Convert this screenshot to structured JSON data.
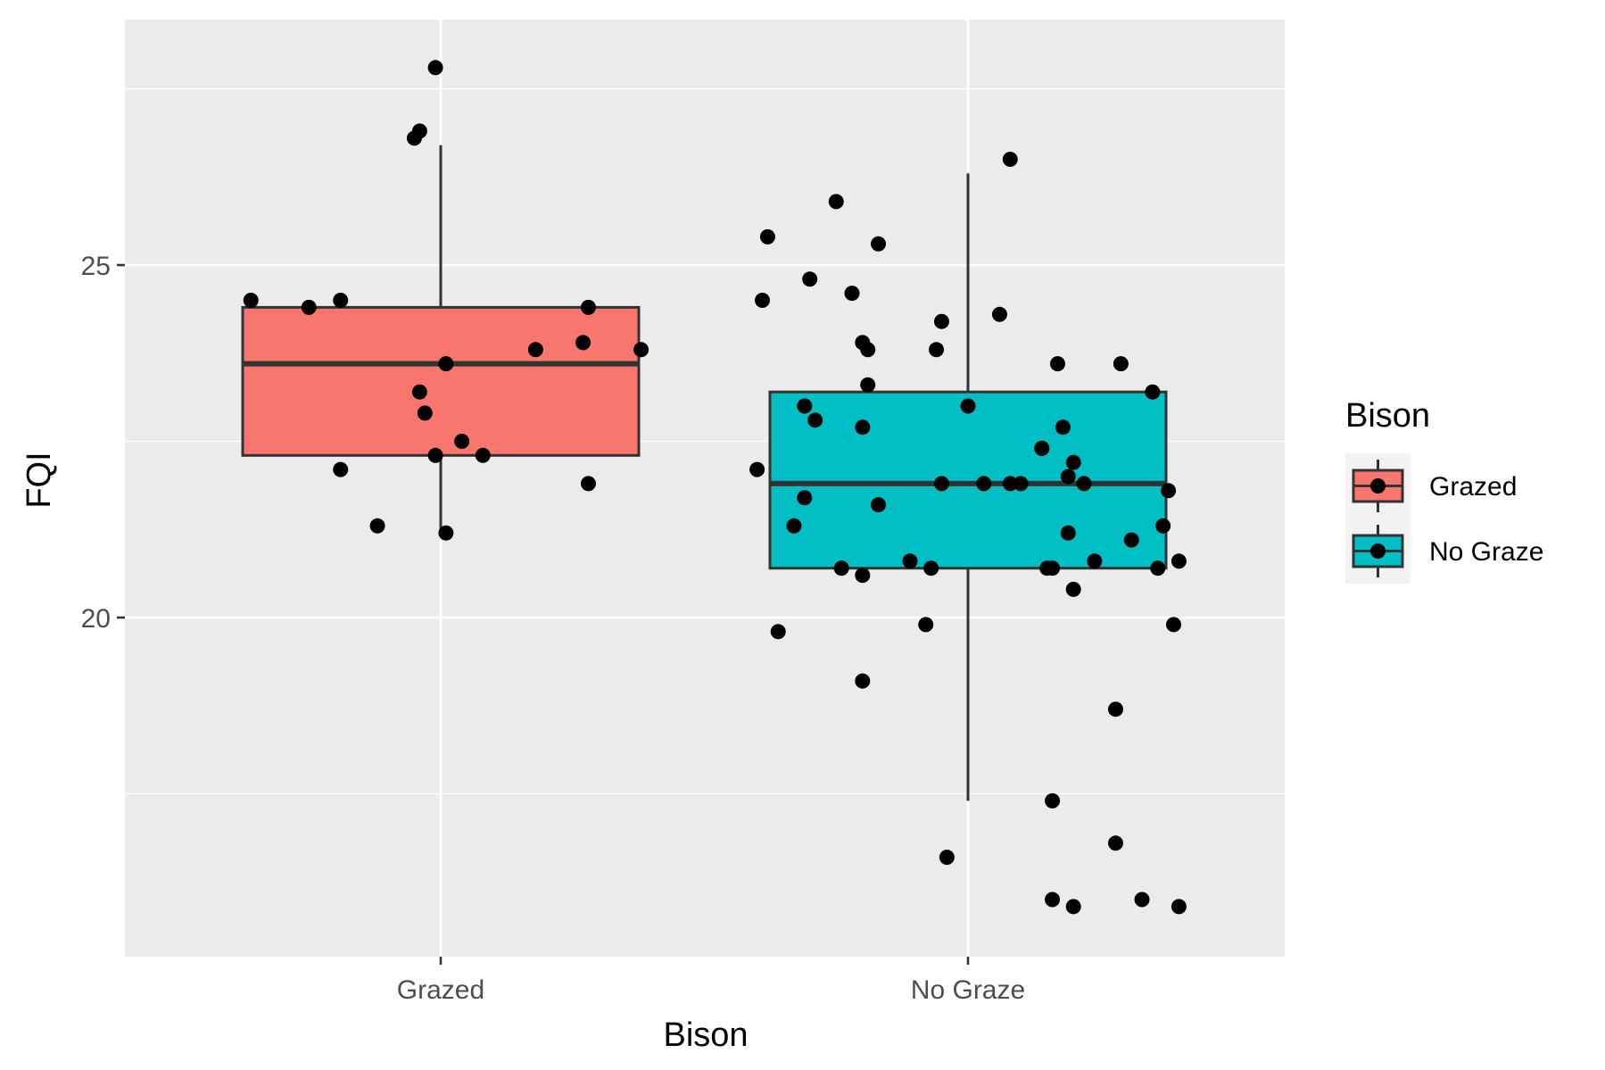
{
  "chart_data": {
    "type": "box",
    "xlabel": "Bison",
    "ylabel": "FQI",
    "categories": [
      "Grazed",
      "No Graze"
    ],
    "y_ticks": [
      20,
      25
    ],
    "ylim": [
      15.3,
      28.0
    ],
    "grid": true,
    "panel_background": "#ebebeb",
    "legend": {
      "title": "Bison",
      "position": "right",
      "entries": [
        {
          "label": "Grazed",
          "color": "#f8766d"
        },
        {
          "label": "No Graze",
          "color": "#00bfc4"
        }
      ]
    },
    "boxes": [
      {
        "category": "Grazed",
        "color": "#f8766d",
        "whisker_low": 21.2,
        "q1": 22.3,
        "median": 23.6,
        "q3": 24.4,
        "whisker_high": 26.7
      },
      {
        "category": "No Graze",
        "color": "#00bfc4",
        "whisker_low": 17.4,
        "q1": 20.7,
        "median": 21.9,
        "q3": 23.2,
        "whisker_high": 26.3
      }
    ],
    "points": [
      {
        "category": "Grazed",
        "jitter": -0.36,
        "y": 24.5
      },
      {
        "category": "Grazed",
        "jitter": -0.25,
        "y": 24.4
      },
      {
        "category": "Grazed",
        "jitter": -0.19,
        "y": 24.5
      },
      {
        "category": "Grazed",
        "jitter": -0.19,
        "y": 22.1
      },
      {
        "category": "Grazed",
        "jitter": -0.12,
        "y": 21.3
      },
      {
        "category": "Grazed",
        "jitter": -0.05,
        "y": 26.8
      },
      {
        "category": "Grazed",
        "jitter": -0.04,
        "y": 26.9
      },
      {
        "category": "Grazed",
        "jitter": -0.04,
        "y": 23.2
      },
      {
        "category": "Grazed",
        "jitter": -0.03,
        "y": 22.9
      },
      {
        "category": "Grazed",
        "jitter": -0.01,
        "y": 27.8
      },
      {
        "category": "Grazed",
        "jitter": -0.01,
        "y": 22.3
      },
      {
        "category": "Grazed",
        "jitter": 0.01,
        "y": 23.6
      },
      {
        "category": "Grazed",
        "jitter": 0.01,
        "y": 21.2
      },
      {
        "category": "Grazed",
        "jitter": 0.04,
        "y": 22.5
      },
      {
        "category": "Grazed",
        "jitter": 0.08,
        "y": 22.3
      },
      {
        "category": "Grazed",
        "jitter": 0.18,
        "y": 23.8
      },
      {
        "category": "Grazed",
        "jitter": 0.27,
        "y": 23.9
      },
      {
        "category": "Grazed",
        "jitter": 0.28,
        "y": 21.9
      },
      {
        "category": "Grazed",
        "jitter": 0.28,
        "y": 24.4
      },
      {
        "category": "Grazed",
        "jitter": 0.38,
        "y": 23.8
      },
      {
        "category": "No Graze",
        "jitter": -0.4,
        "y": 22.1
      },
      {
        "category": "No Graze",
        "jitter": -0.39,
        "y": 24.5
      },
      {
        "category": "No Graze",
        "jitter": -0.38,
        "y": 25.4
      },
      {
        "category": "No Graze",
        "jitter": -0.36,
        "y": 19.8
      },
      {
        "category": "No Graze",
        "jitter": -0.33,
        "y": 21.3
      },
      {
        "category": "No Graze",
        "jitter": -0.31,
        "y": 21.7
      },
      {
        "category": "No Graze",
        "jitter": -0.31,
        "y": 23.0
      },
      {
        "category": "No Graze",
        "jitter": -0.3,
        "y": 24.8
      },
      {
        "category": "No Graze",
        "jitter": -0.29,
        "y": 22.8
      },
      {
        "category": "No Graze",
        "jitter": -0.25,
        "y": 25.9
      },
      {
        "category": "No Graze",
        "jitter": -0.24,
        "y": 20.7
      },
      {
        "category": "No Graze",
        "jitter": -0.22,
        "y": 24.6
      },
      {
        "category": "No Graze",
        "jitter": -0.2,
        "y": 23.9
      },
      {
        "category": "No Graze",
        "jitter": -0.2,
        "y": 22.7
      },
      {
        "category": "No Graze",
        "jitter": -0.2,
        "y": 20.6
      },
      {
        "category": "No Graze",
        "jitter": -0.2,
        "y": 19.1
      },
      {
        "category": "No Graze",
        "jitter": -0.19,
        "y": 23.8
      },
      {
        "category": "No Graze",
        "jitter": -0.19,
        "y": 23.3
      },
      {
        "category": "No Graze",
        "jitter": -0.17,
        "y": 21.6
      },
      {
        "category": "No Graze",
        "jitter": -0.17,
        "y": 25.3
      },
      {
        "category": "No Graze",
        "jitter": -0.11,
        "y": 20.8
      },
      {
        "category": "No Graze",
        "jitter": -0.08,
        "y": 19.9
      },
      {
        "category": "No Graze",
        "jitter": -0.07,
        "y": 20.7
      },
      {
        "category": "No Graze",
        "jitter": -0.06,
        "y": 23.8
      },
      {
        "category": "No Graze",
        "jitter": -0.05,
        "y": 24.2
      },
      {
        "category": "No Graze",
        "jitter": -0.05,
        "y": 21.9
      },
      {
        "category": "No Graze",
        "jitter": -0.04,
        "y": 16.6
      },
      {
        "category": "No Graze",
        "jitter": 0.0,
        "y": 23.0
      },
      {
        "category": "No Graze",
        "jitter": 0.03,
        "y": 21.9
      },
      {
        "category": "No Graze",
        "jitter": 0.06,
        "y": 24.3
      },
      {
        "category": "No Graze",
        "jitter": 0.08,
        "y": 26.5
      },
      {
        "category": "No Graze",
        "jitter": 0.08,
        "y": 21.9
      },
      {
        "category": "No Graze",
        "jitter": 0.1,
        "y": 21.9
      },
      {
        "category": "No Graze",
        "jitter": 0.14,
        "y": 22.4
      },
      {
        "category": "No Graze",
        "jitter": 0.14,
        "y": 22.4
      },
      {
        "category": "No Graze",
        "jitter": 0.15,
        "y": 20.7
      },
      {
        "category": "No Graze",
        "jitter": 0.16,
        "y": 20.7
      },
      {
        "category": "No Graze",
        "jitter": 0.16,
        "y": 17.4
      },
      {
        "category": "No Graze",
        "jitter": 0.16,
        "y": 16.0
      },
      {
        "category": "No Graze",
        "jitter": 0.17,
        "y": 23.6
      },
      {
        "category": "No Graze",
        "jitter": 0.18,
        "y": 22.7
      },
      {
        "category": "No Graze",
        "jitter": 0.19,
        "y": 21.2
      },
      {
        "category": "No Graze",
        "jitter": 0.19,
        "y": 22.0
      },
      {
        "category": "No Graze",
        "jitter": 0.2,
        "y": 22.2
      },
      {
        "category": "No Graze",
        "jitter": 0.2,
        "y": 20.4
      },
      {
        "category": "No Graze",
        "jitter": 0.2,
        "y": 15.9
      },
      {
        "category": "No Graze",
        "jitter": 0.22,
        "y": 21.9
      },
      {
        "category": "No Graze",
        "jitter": 0.24,
        "y": 20.8
      },
      {
        "category": "No Graze",
        "jitter": 0.28,
        "y": 18.7
      },
      {
        "category": "No Graze",
        "jitter": 0.28,
        "y": 16.8
      },
      {
        "category": "No Graze",
        "jitter": 0.29,
        "y": 23.6
      },
      {
        "category": "No Graze",
        "jitter": 0.31,
        "y": 21.1
      },
      {
        "category": "No Graze",
        "jitter": 0.33,
        "y": 16.0
      },
      {
        "category": "No Graze",
        "jitter": 0.35,
        "y": 23.2
      },
      {
        "category": "No Graze",
        "jitter": 0.36,
        "y": 20.7
      },
      {
        "category": "No Graze",
        "jitter": 0.37,
        "y": 21.3
      },
      {
        "category": "No Graze",
        "jitter": 0.38,
        "y": 21.8
      },
      {
        "category": "No Graze",
        "jitter": 0.39,
        "y": 19.9
      },
      {
        "category": "No Graze",
        "jitter": 0.4,
        "y": 20.8
      },
      {
        "category": "No Graze",
        "jitter": 0.4,
        "y": 15.9
      }
    ]
  }
}
